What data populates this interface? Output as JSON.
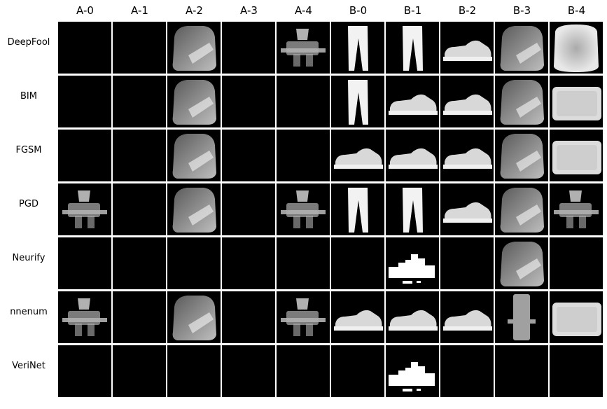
{
  "columns": [
    "A-0",
    "A-1",
    "A-2",
    "A-3",
    "A-4",
    "B-0",
    "B-1",
    "B-2",
    "B-3",
    "B-4"
  ],
  "rows": [
    {
      "method": "DeepFool",
      "cells": [
        "empty",
        "empty",
        "boot",
        "empty",
        "blob",
        "trouser",
        "trouser",
        "sneaker",
        "boot",
        "pullover"
      ]
    },
    {
      "method": "BIM",
      "cells": [
        "empty",
        "empty",
        "boot",
        "empty",
        "empty",
        "trouser",
        "sneaker",
        "sneaker",
        "boot",
        "bag"
      ]
    },
    {
      "method": "FGSM",
      "cells": [
        "empty",
        "empty",
        "boot",
        "empty",
        "empty",
        "sneaker",
        "sneaker",
        "sneaker",
        "boot",
        "bag"
      ]
    },
    {
      "method": "PGD",
      "cells": [
        "blob",
        "empty",
        "boot",
        "empty",
        "blob",
        "trouser",
        "trouser",
        "sneaker",
        "boot",
        "blob"
      ]
    },
    {
      "method": "Neurify",
      "cells": [
        "empty",
        "empty",
        "empty",
        "empty",
        "empty",
        "empty",
        "fragment",
        "empty",
        "boot",
        "empty"
      ]
    },
    {
      "method": "nnenum",
      "cells": [
        "blob",
        "empty",
        "boot",
        "empty",
        "blob",
        "sneaker",
        "sneaker",
        "sneaker",
        "column",
        "bag"
      ]
    },
    {
      "method": "VeriNet",
      "cells": [
        "empty",
        "empty",
        "empty",
        "empty",
        "empty",
        "empty",
        "fragment",
        "empty",
        "empty",
        "empty"
      ]
    }
  ],
  "colors": {
    "background": "#ffffff",
    "cell": "#000000",
    "shape_light": "#e6e6e6",
    "shape_mid": "#9a9a9a"
  }
}
